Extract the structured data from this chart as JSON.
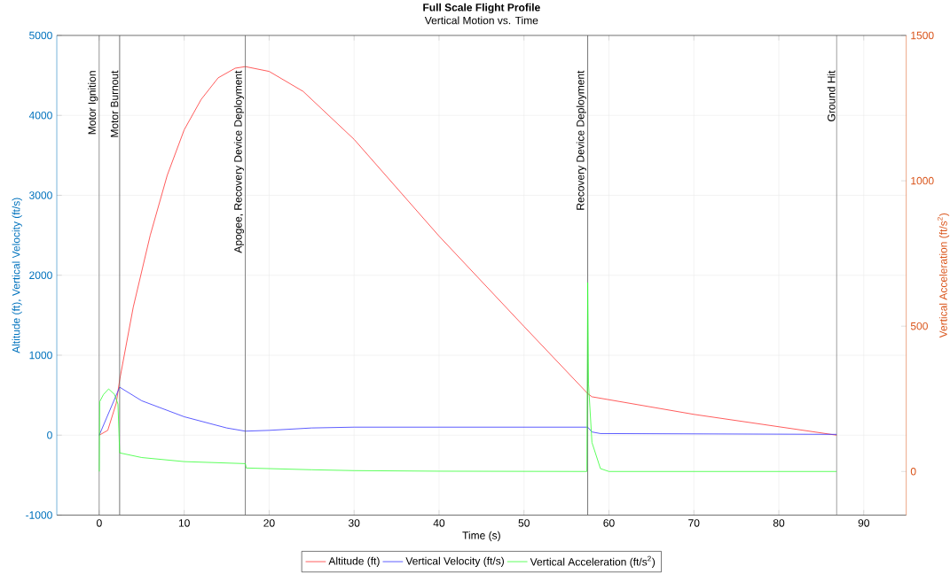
{
  "chart_data": {
    "type": "line",
    "title": "Full Scale Flight Profile",
    "subtitle": "Vertical Motion vs. Time",
    "xlabel": "Time (s)",
    "ylabel": "Altitude (ft), Vertical Velocity (ft/s)",
    "y2label": "Vertical Acceleration (ft/s$^{2}$)",
    "xlim": [
      -5,
      95
    ],
    "xticks": [
      0,
      10,
      20,
      30,
      40,
      50,
      60,
      70,
      80,
      90
    ],
    "ylim": [
      -1000,
      5000
    ],
    "yticks": [
      -1000,
      0,
      1000,
      2000,
      3000,
      4000,
      5000
    ],
    "y2lim": [
      -150,
      1500
    ],
    "y2ticks": [
      0,
      500,
      1000,
      1500
    ],
    "grid": true,
    "legend": "bottom",
    "series": [
      {
        "name": "Altitude (ft)",
        "color": "#ff3333",
        "x": [
          0,
          1,
          2,
          2.4,
          4,
          6,
          8,
          10,
          12,
          14,
          16,
          17.2,
          20,
          24,
          28,
          30,
          40,
          50,
          57.5,
          58,
          70,
          86.8
        ],
        "values": [
          0,
          60,
          400,
          690,
          1600,
          2500,
          3250,
          3820,
          4200,
          4470,
          4590,
          4610,
          4550,
          4300,
          3900,
          3700,
          2490,
          1360,
          520,
          480,
          260,
          0
        ]
      },
      {
        "name": "Vertical Velocity (ft/s)",
        "color": "#3333ff",
        "x": [
          0,
          2.4,
          5,
          10,
          15,
          17.2,
          20,
          25,
          30,
          40,
          57.5,
          58,
          59,
          86.8
        ],
        "values": [
          0,
          600,
          430,
          230,
          90,
          50,
          60,
          90,
          100,
          100,
          100,
          40,
          20,
          10
        ]
      },
      {
        "name": "Vertical Acceleration (ft/s$^{2}$)",
        "color": "#33ff33",
        "axis": "y2",
        "x": [
          0,
          0.05,
          0.5,
          1.1,
          1.8,
          2.2,
          2.3,
          2.4,
          5,
          10,
          17.2,
          17.3,
          25,
          30,
          40,
          57.4,
          57.5,
          57.6,
          58,
          59,
          60,
          86.8
        ],
        "values": [
          0,
          240,
          265,
          284,
          265,
          232,
          150,
          64,
          48,
          34,
          27,
          12,
          6,
          3,
          1,
          0,
          650,
          300,
          100,
          10,
          0,
          0
        ]
      }
    ],
    "ref_lines": [
      {
        "axis": "x",
        "value": 0,
        "label": "Motor Ignition",
        "color": "#555555"
      },
      {
        "axis": "x",
        "value": 2.4,
        "label": "Motor Burnout",
        "color": "#555555"
      },
      {
        "axis": "x",
        "value": 17.2,
        "label": "Apogee, Recovery Device Deployment",
        "color": "#555555"
      },
      {
        "axis": "x",
        "value": 57.5,
        "label": "Recovery Device Deployment",
        "color": "#555555"
      },
      {
        "axis": "x",
        "value": 86.8,
        "label": "Ground Hit",
        "color": "#555555"
      }
    ]
  }
}
